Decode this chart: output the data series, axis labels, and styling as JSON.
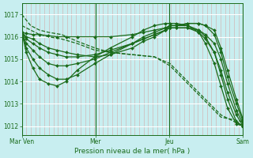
{
  "bg_color": "#c8eef0",
  "line_color": "#1a6b1a",
  "grid_v_color": "#d4a8a8",
  "grid_h_color": "#ffffff",
  "ylabel_ticks": [
    1012,
    1013,
    1014,
    1015,
    1016,
    1017
  ],
  "x_tick_labels": [
    "Mar Ven",
    "Mer",
    "Jeu",
    "Sam"
  ],
  "x_tick_positions": [
    0.0,
    0.333,
    0.667,
    1.0
  ],
  "xlabel": "Pression niveau de la mer( hPa )",
  "xlim": [
    0,
    1
  ],
  "ylim": [
    1011.6,
    1017.5
  ],
  "series": [
    {
      "x": [
        0.0,
        0.04,
        0.08,
        0.12,
        0.18,
        0.25,
        0.33,
        0.4,
        0.5,
        0.6,
        0.67,
        0.75,
        0.83,
        0.9,
        1.0
      ],
      "y": [
        1017.0,
        1016.5,
        1016.3,
        1016.2,
        1016.1,
        1015.8,
        1015.5,
        1015.3,
        1015.2,
        1015.1,
        1014.8,
        1014.0,
        1013.2,
        1012.5,
        1012.0
      ],
      "style": "dashed",
      "marker": null,
      "lw": 0.9
    },
    {
      "x": [
        0.0,
        0.04,
        0.08,
        0.12,
        0.18,
        0.25,
        0.33,
        0.4,
        0.5,
        0.6,
        0.67,
        0.75,
        0.83,
        0.9,
        1.0
      ],
      "y": [
        1016.5,
        1016.3,
        1016.1,
        1016.0,
        1015.9,
        1015.7,
        1015.4,
        1015.3,
        1015.2,
        1015.1,
        1014.7,
        1013.9,
        1013.1,
        1012.4,
        1012.2
      ],
      "style": "dashed",
      "marker": null,
      "lw": 0.9
    },
    {
      "x": [
        0.0,
        0.02,
        0.05,
        0.08,
        0.12,
        0.16,
        0.2,
        0.25,
        0.33,
        0.4,
        0.5,
        0.55,
        0.6,
        0.65,
        0.67,
        0.7,
        0.75,
        0.8,
        0.83,
        0.87,
        0.9,
        0.93,
        0.97,
        1.0
      ],
      "y": [
        1016.2,
        1016.15,
        1016.1,
        1016.1,
        1016.05,
        1016.0,
        1016.0,
        1016.0,
        1016.0,
        1016.0,
        1016.1,
        1016.2,
        1016.3,
        1016.4,
        1016.5,
        1016.5,
        1016.6,
        1016.6,
        1016.5,
        1016.3,
        1015.5,
        1014.5,
        1013.2,
        1012.3
      ],
      "style": "solid",
      "marker": "D",
      "ms": 2.0,
      "lw": 0.9
    },
    {
      "x": [
        0.0,
        0.02,
        0.05,
        0.08,
        0.12,
        0.16,
        0.2,
        0.25,
        0.33,
        0.4,
        0.5,
        0.55,
        0.6,
        0.65,
        0.67,
        0.7,
        0.75,
        0.8,
        0.83,
        0.87,
        0.9,
        0.93,
        0.97,
        1.0
      ],
      "y": [
        1016.2,
        1016.0,
        1015.9,
        1015.7,
        1015.5,
        1015.4,
        1015.3,
        1015.2,
        1015.1,
        1015.2,
        1015.5,
        1015.8,
        1016.0,
        1016.3,
        1016.5,
        1016.5,
        1016.6,
        1016.6,
        1016.5,
        1016.1,
        1015.3,
        1014.2,
        1013.0,
        1012.2
      ],
      "style": "solid",
      "marker": "D",
      "ms": 2.0,
      "lw": 0.9
    },
    {
      "x": [
        0.0,
        0.02,
        0.05,
        0.08,
        0.12,
        0.16,
        0.2,
        0.25,
        0.33,
        0.4,
        0.5,
        0.55,
        0.6,
        0.65,
        0.67,
        0.7,
        0.75,
        0.8,
        0.83,
        0.87,
        0.9,
        0.93,
        0.97,
        1.0
      ],
      "y": [
        1016.2,
        1015.9,
        1015.7,
        1015.5,
        1015.3,
        1015.2,
        1015.1,
        1015.1,
        1015.2,
        1015.4,
        1015.7,
        1015.9,
        1016.1,
        1016.3,
        1016.4,
        1016.4,
        1016.4,
        1016.3,
        1016.1,
        1015.7,
        1015.0,
        1013.9,
        1012.7,
        1012.1
      ],
      "style": "solid",
      "marker": "D",
      "ms": 2.0,
      "lw": 0.9
    },
    {
      "x": [
        0.0,
        0.02,
        0.05,
        0.08,
        0.12,
        0.16,
        0.2,
        0.25,
        0.33,
        0.4,
        0.5,
        0.55,
        0.6,
        0.65,
        0.67,
        0.7,
        0.75,
        0.8,
        0.83,
        0.87,
        0.9,
        0.93,
        0.97,
        1.0
      ],
      "y": [
        1016.2,
        1015.7,
        1015.4,
        1015.1,
        1014.8,
        1014.7,
        1014.7,
        1014.8,
        1015.0,
        1015.3,
        1015.7,
        1015.9,
        1016.1,
        1016.3,
        1016.4,
        1016.4,
        1016.4,
        1016.2,
        1015.9,
        1015.3,
        1014.5,
        1013.5,
        1012.5,
        1012.0
      ],
      "style": "solid",
      "marker": "D",
      "ms": 2.0,
      "lw": 0.9
    },
    {
      "x": [
        0.0,
        0.02,
        0.05,
        0.08,
        0.12,
        0.16,
        0.2,
        0.25,
        0.33,
        0.4,
        0.5,
        0.55,
        0.6,
        0.65,
        0.67,
        0.7,
        0.75,
        0.8,
        0.83,
        0.87,
        0.9,
        0.93,
        0.97,
        1.0
      ],
      "y": [
        1016.2,
        1015.5,
        1015.0,
        1014.6,
        1014.3,
        1014.1,
        1014.1,
        1014.3,
        1014.8,
        1015.2,
        1015.7,
        1016.0,
        1016.2,
        1016.4,
        1016.5,
        1016.5,
        1016.5,
        1016.3,
        1016.0,
        1015.3,
        1014.3,
        1013.2,
        1012.2,
        1012.0
      ],
      "style": "solid",
      "marker": "D",
      "ms": 2.0,
      "lw": 0.9
    },
    {
      "x": [
        0.0,
        0.02,
        0.05,
        0.08,
        0.12,
        0.16,
        0.2,
        0.25,
        0.33,
        0.4,
        0.5,
        0.55,
        0.6,
        0.65,
        0.67,
        0.7,
        0.75,
        0.8,
        0.83,
        0.87,
        0.9,
        0.93,
        0.97,
        1.0
      ],
      "y": [
        1016.2,
        1015.3,
        1014.6,
        1014.1,
        1013.9,
        1013.8,
        1014.0,
        1014.5,
        1015.1,
        1015.5,
        1016.0,
        1016.3,
        1016.5,
        1016.6,
        1016.6,
        1016.6,
        1016.5,
        1016.2,
        1015.7,
        1014.8,
        1013.8,
        1012.8,
        1012.1,
        1012.0
      ],
      "style": "solid",
      "marker": "D",
      "ms": 2.0,
      "lw": 0.9
    }
  ]
}
